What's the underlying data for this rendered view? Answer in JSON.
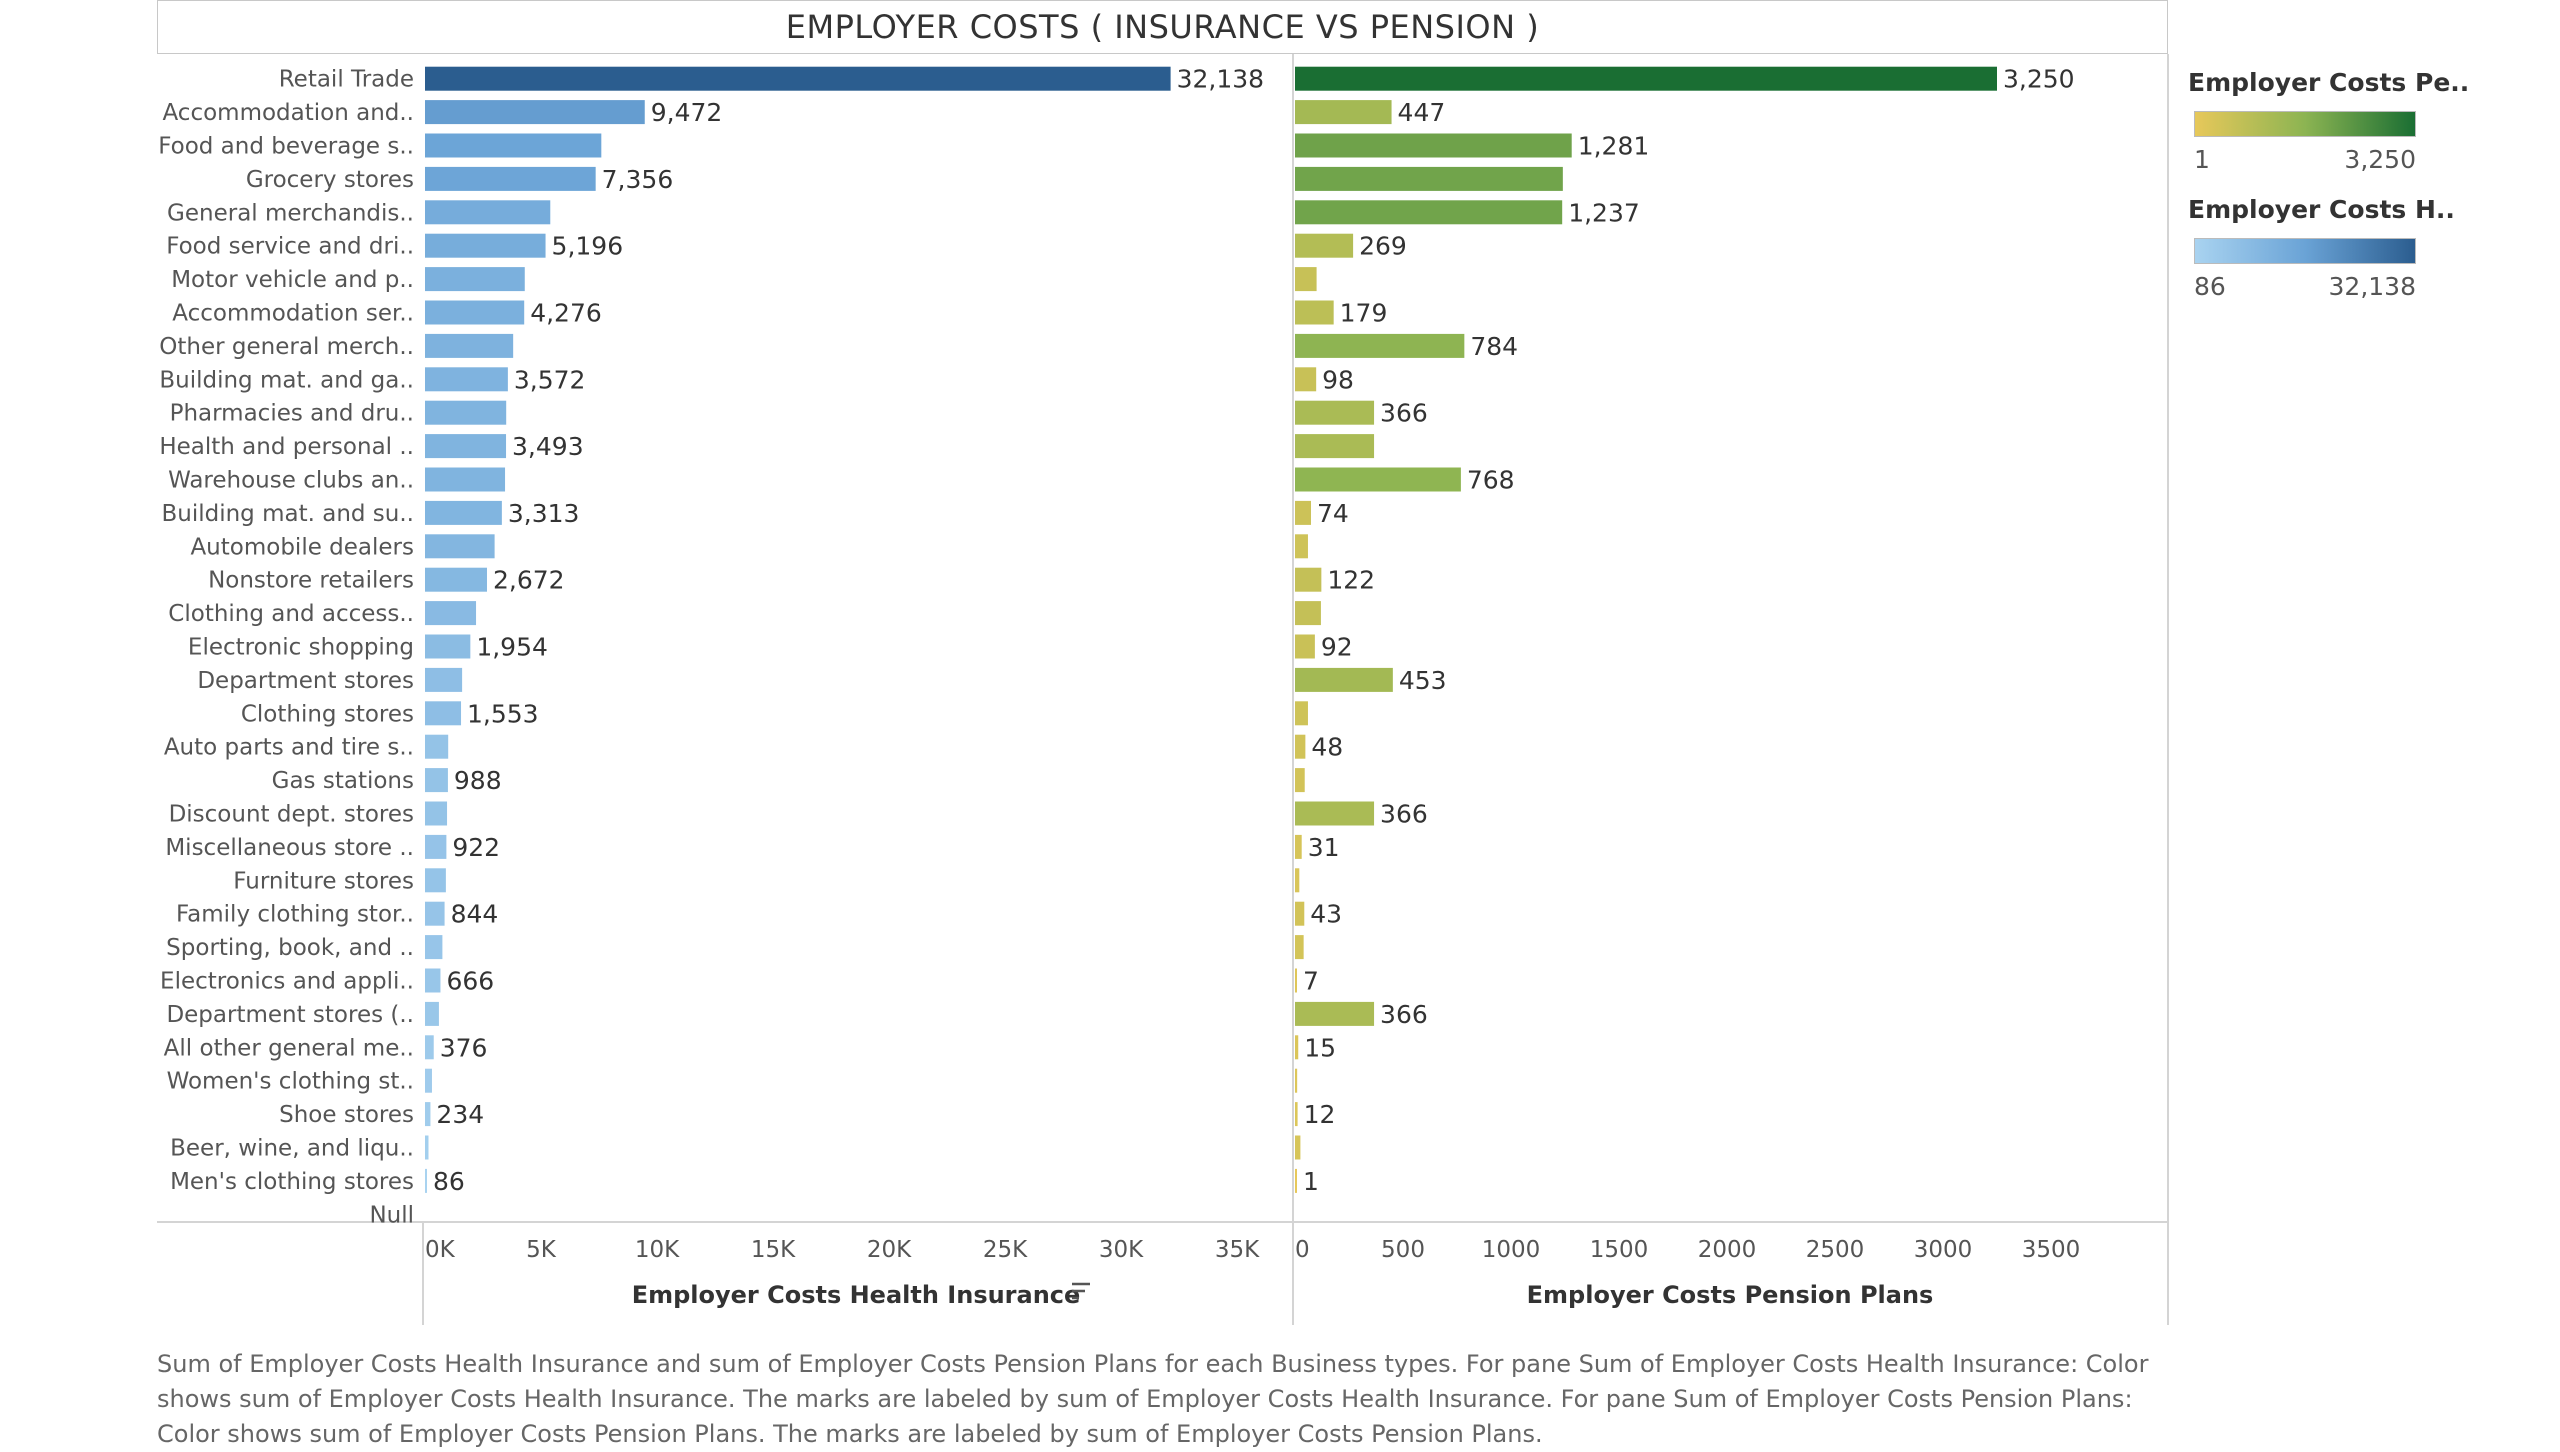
{
  "page": {
    "title": "EMPLOYER COSTS ( INSURANCE VS PENSION )",
    "footnote": "Sum of Employer Costs Health Insurance and sum of Employer Costs Pension Plans for each Business types.  For pane Sum of Employer Costs Health Insurance:  Color shows sum of Employer Costs Health Insurance.  The marks are labeled by sum of Employer Costs Health Insurance.  For pane Sum of Employer Costs Pension Plans:  Color shows sum of Employer Costs Pension Plans.  The marks are labeled by sum of Employer Costs Pension Plans."
  },
  "legends": {
    "pension": {
      "title": "Employer Costs Pe..",
      "min": "1",
      "max": "3,250",
      "colors": [
        "#e7c85a",
        "#8cb452",
        "#1a6e33"
      ]
    },
    "health": {
      "title": "Employer Costs H..",
      "min": "86",
      "max": "32,138",
      "colors": [
        "#a9d3f0",
        "#6aa3d6",
        "#2b5d8f"
      ]
    }
  },
  "chart_data": {
    "type": "bar",
    "orientation": "horizontal",
    "categories": [
      "Retail Trade",
      "Accommodation and..",
      "Food and beverage s..",
      "Grocery stores",
      "General merchandis..",
      "Food service and dri..",
      "Motor vehicle and p..",
      "Accommodation ser..",
      "Other general merch..",
      "Building mat. and ga..",
      "Pharmacies and dru..",
      "Health and personal ..",
      "Warehouse clubs an..",
      "Building mat. and su..",
      "Automobile dealers",
      "Nonstore retailers",
      "Clothing and access..",
      "Electronic shopping",
      "Department stores",
      "Clothing stores",
      "Auto parts and tire s..",
      "Gas stations",
      "Discount dept. stores",
      "Miscellaneous store ..",
      "Furniture stores",
      "Family clothing stor..",
      "Sporting, book, and ..",
      "Electronics and appli..",
      "Department stores (..",
      "All other general me..",
      "Women's clothing st..",
      "Shoe stores",
      "Beer, wine, and liqu..",
      "Men's clothing stores",
      "Null"
    ],
    "series": [
      {
        "name": "Employer Costs Health Insurance",
        "values": [
          32138,
          9472,
          7600,
          7356,
          5400,
          5196,
          4300,
          4276,
          3800,
          3572,
          3500,
          3493,
          3450,
          3313,
          3000,
          2672,
          2200,
          1954,
          1600,
          1553,
          1000,
          988,
          950,
          922,
          900,
          844,
          750,
          666,
          600,
          376,
          300,
          234,
          150,
          86,
          null
        ],
        "labels": [
          "32,138",
          "9,472",
          "",
          "7,356",
          "",
          "5,196",
          "",
          "4,276",
          "",
          "3,572",
          "",
          "3,493",
          "",
          "3,313",
          "",
          "2,672",
          "",
          "1,954",
          "",
          "1,553",
          "",
          "988",
          "",
          "922",
          "",
          "844",
          "",
          "666",
          "",
          "376",
          "",
          "234",
          "",
          "86",
          ""
        ],
        "xlim": [
          0,
          35000
        ],
        "ticks": [
          "0K",
          "5K",
          "10K",
          "15K",
          "20K",
          "25K",
          "30K",
          "35K"
        ],
        "xlabel": "Employer Costs Health Insurance"
      },
      {
        "name": "Employer Costs Pension Plans",
        "values": [
          3250,
          447,
          1281,
          1240,
          1237,
          269,
          100,
          179,
          784,
          98,
          366,
          366,
          768,
          74,
          60,
          122,
          120,
          92,
          453,
          60,
          48,
          45,
          366,
          31,
          20,
          43,
          40,
          7,
          366,
          15,
          10,
          12,
          25,
          1,
          null
        ],
        "labels": [
          "3,250",
          "447",
          "1,281",
          "",
          "1,237",
          "269",
          "",
          "179",
          "784",
          "98",
          "366",
          "",
          "768",
          "74",
          "",
          "122",
          "",
          "92",
          "453",
          "",
          "48",
          "",
          "366",
          "31",
          "",
          "43",
          "",
          "7",
          "366",
          "15",
          "",
          "12",
          "",
          "1",
          ""
        ],
        "xlim": [
          0,
          3750
        ],
        "ticks": [
          "0",
          "500",
          "1000",
          "1500",
          "2000",
          "2500",
          "3000",
          "3500"
        ],
        "xlabel": "Employer Costs Pension Plans"
      }
    ]
  }
}
